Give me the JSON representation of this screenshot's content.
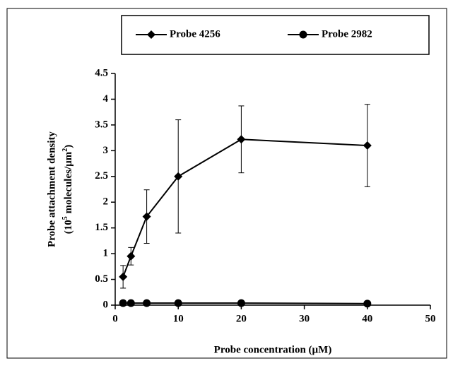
{
  "chart_data": {
    "type": "line",
    "xlabel": "Probe concentration (µM)",
    "ylabel": "Probe attachment density",
    "ylabel2": [
      "(10",
      "5",
      " molecules/µm",
      "2",
      ")"
    ],
    "x": [
      1.25,
      2.5,
      5,
      10,
      20,
      40
    ],
    "series": [
      {
        "name": "Probe 4256",
        "color": "#000000",
        "marker": "diamond",
        "values": [
          0.55,
          0.95,
          1.72,
          2.5,
          3.22,
          3.1
        ],
        "errors": [
          0.22,
          0.17,
          0.52,
          1.1,
          0.65,
          0.8
        ]
      },
      {
        "name": "Probe 2982",
        "color": "#000000",
        "marker": "circle",
        "values": [
          0.04,
          0.04,
          0.04,
          0.04,
          0.04,
          0.03
        ]
      }
    ],
    "xlim": [
      0,
      50
    ],
    "xticks": [
      0,
      10,
      20,
      30,
      40,
      50
    ],
    "ylim": [
      0,
      4.5
    ],
    "yticks": [
      0,
      0.5,
      1,
      1.5,
      2,
      2.5,
      3,
      3.5,
      4,
      4.5
    ],
    "grid": false,
    "legend": "top"
  }
}
